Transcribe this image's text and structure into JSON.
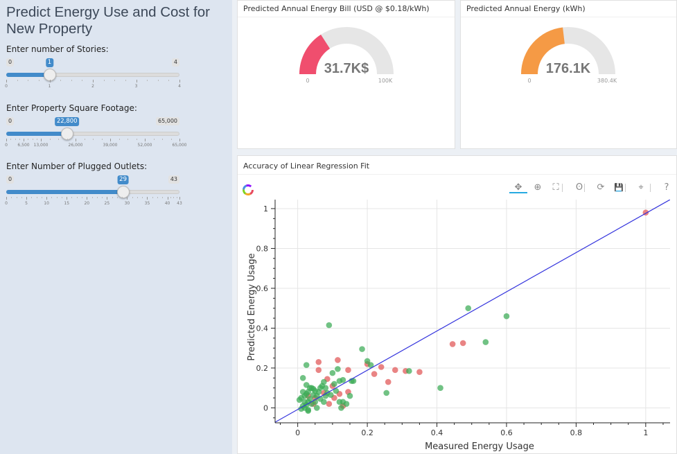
{
  "sidebar": {
    "title": "Predict Energy Use and Cost for New Property",
    "sliders": [
      {
        "label": "Enter number of Stories:",
        "min_label": "0",
        "max_label": "4",
        "value_label": "1",
        "min": 0,
        "max": 4,
        "value": 1,
        "ticks": [
          {
            "v": 0,
            "label": "0"
          },
          {
            "v": 1,
            "label": "1"
          },
          {
            "v": 2,
            "label": "2"
          },
          {
            "v": 3,
            "label": "3"
          },
          {
            "v": 4,
            "label": "4"
          }
        ]
      },
      {
        "label": "Enter Property Square Footage:",
        "min_label": "0",
        "max_label": "65,000",
        "value_label": "22,800",
        "min": 0,
        "max": 65000,
        "value": 22800,
        "ticks": [
          {
            "v": 0,
            "label": "0"
          },
          {
            "v": 6500,
            "label": "6,500"
          },
          {
            "v": 13000,
            "label": "13,000"
          },
          {
            "v": 26000,
            "label": "26,000"
          },
          {
            "v": 39000,
            "label": "39,000"
          },
          {
            "v": 52000,
            "label": "52,000"
          },
          {
            "v": 65000,
            "label": "65,000"
          }
        ]
      },
      {
        "label": "Enter Number of Plugged Outlets:",
        "min_label": "0",
        "max_label": "43",
        "value_label": "29",
        "min": 0,
        "max": 43,
        "value": 29,
        "ticks": [
          {
            "v": 0,
            "label": "0"
          },
          {
            "v": 5,
            "label": "5"
          },
          {
            "v": 10,
            "label": "10"
          },
          {
            "v": 15,
            "label": "15"
          },
          {
            "v": 20,
            "label": "20"
          },
          {
            "v": 25,
            "label": "25"
          },
          {
            "v": 30,
            "label": "30"
          },
          {
            "v": 35,
            "label": "35"
          },
          {
            "v": 40,
            "label": "40"
          },
          {
            "v": 43,
            "label": "43"
          }
        ]
      }
    ]
  },
  "gauges": [
    {
      "title": "Predicted Annual Energy Bill (USD @ $0.18/kWh)",
      "value_label": "31.7K$",
      "min_label": "0",
      "max_label": "100K",
      "value": 31.7,
      "max": 100,
      "color": "#f04e6e"
    },
    {
      "title": "Predicted Annual Energy (kWh)",
      "value_label": "176.1K",
      "min_label": "0",
      "max_label": "380.4K",
      "value": 176.1,
      "max": 380.4,
      "color": "#f59a45"
    }
  ],
  "plot_box": {
    "title": "Accuracy of Linear Regression Fit",
    "toolbar": [
      {
        "icon": "pan-icon",
        "glyph": "✥",
        "active": true
      },
      {
        "icon": "box-zoom-icon",
        "glyph": "⊕"
      },
      {
        "icon": "wheel-zoom-icon",
        "glyph": "⛶"
      },
      {
        "icon": "lasso-select-icon",
        "glyph": "ʘ"
      },
      {
        "icon": "reset-icon",
        "glyph": "⟳"
      },
      {
        "icon": "save-icon",
        "glyph": "💾"
      },
      {
        "icon": "hover-icon",
        "glyph": "⌖"
      },
      {
        "icon": "help-icon",
        "glyph": "?"
      }
    ]
  },
  "chart_data": {
    "type": "scatter",
    "title": "",
    "xlabel": "Measured Energy Usage",
    "ylabel": "Predicted Energy Usage",
    "xlim": [
      -0.065,
      1.07
    ],
    "ylim": [
      -0.075,
      1.045
    ],
    "xticks": [
      0,
      0.2,
      0.4,
      0.6,
      0.8,
      1
    ],
    "xtick_labels": [
      "0",
      "0.2",
      "0.4",
      "0.6",
      "0.8",
      "1"
    ],
    "yticks": [
      0,
      0.2,
      0.4,
      0.6,
      0.8,
      1
    ],
    "ytick_labels": [
      "0",
      "0.2",
      "0.4",
      "0.6",
      "0.8",
      "1"
    ],
    "grid": true,
    "fit_line": {
      "x": [
        -0.065,
        1.07
      ],
      "y": [
        -0.072,
        1.045
      ],
      "color": "#3333dd"
    },
    "series": [
      {
        "color": "#e05555",
        "points": [
          [
            1.0,
            0.98
          ],
          [
            0.445,
            0.32
          ],
          [
            0.475,
            0.325
          ],
          [
            0.35,
            0.18
          ],
          [
            0.31,
            0.185
          ],
          [
            0.28,
            0.19
          ],
          [
            0.26,
            0.13
          ],
          [
            0.24,
            0.205
          ],
          [
            0.22,
            0.17
          ],
          [
            0.2,
            0.22
          ],
          [
            0.115,
            0.24
          ],
          [
            0.06,
            0.23
          ],
          [
            0.06,
            0.19
          ],
          [
            0.145,
            0.19
          ],
          [
            0.145,
            0.08
          ],
          [
            0.12,
            0.07
          ],
          [
            0.105,
            0.05
          ],
          [
            0.13,
            0.01
          ],
          [
            0.09,
            0.02
          ],
          [
            0.075,
            0.075
          ],
          [
            0.05,
            0.05
          ],
          [
            0.03,
            0.06
          ],
          [
            0.045,
            0.02
          ],
          [
            0.085,
            0.145
          ],
          [
            0.1,
            0.11
          ]
        ]
      },
      {
        "color": "#3aaa55",
        "points": [
          [
            0.6,
            0.46
          ],
          [
            0.49,
            0.5
          ],
          [
            0.54,
            0.33
          ],
          [
            0.41,
            0.1
          ],
          [
            0.185,
            0.295
          ],
          [
            0.2,
            0.235
          ],
          [
            0.21,
            0.215
          ],
          [
            0.155,
            0.135
          ],
          [
            0.16,
            0.135
          ],
          [
            0.13,
            0.14
          ],
          [
            0.12,
            0.135
          ],
          [
            0.115,
            0.195
          ],
          [
            0.105,
            0.12
          ],
          [
            0.09,
            0.415
          ],
          [
            0.1,
            0.175
          ],
          [
            0.075,
            0.13
          ],
          [
            0.07,
            0.11
          ],
          [
            0.065,
            0.1
          ],
          [
            0.025,
            0.215
          ],
          [
            0.015,
            0.15
          ],
          [
            0.025,
            0.115
          ],
          [
            0.035,
            0.1
          ],
          [
            0.045,
            0.095
          ],
          [
            0.04,
            0.1
          ],
          [
            0.03,
            0.08
          ],
          [
            0.025,
            0.07
          ],
          [
            0.02,
            0.06
          ],
          [
            0.01,
            0.05
          ],
          [
            0.005,
            0.04
          ],
          [
            0.02,
            0.03
          ],
          [
            0.03,
            0.03
          ],
          [
            0.04,
            0.02
          ],
          [
            0.05,
            0.03
          ],
          [
            0.055,
            0.0
          ],
          [
            0.03,
            -0.01
          ],
          [
            0.015,
            0.01
          ],
          [
            0.035,
            0.045
          ],
          [
            0.055,
            0.06
          ],
          [
            0.06,
            0.08
          ],
          [
            0.08,
            0.06
          ],
          [
            0.085,
            0.075
          ],
          [
            0.075,
            0.03
          ],
          [
            0.095,
            0.065
          ],
          [
            0.12,
            0.03
          ],
          [
            0.13,
            0.03
          ],
          [
            0.125,
            0.0
          ],
          [
            0.14,
            0.02
          ],
          [
            0.15,
            0.06
          ],
          [
            0.255,
            0.075
          ],
          [
            0.32,
            0.185
          ],
          [
            0.01,
            -0.005
          ],
          [
            0.02,
            0.0
          ],
          [
            0.025,
            0.015
          ],
          [
            0.045,
            0.065
          ],
          [
            0.05,
            0.085
          ],
          [
            0.065,
            0.045
          ],
          [
            0.08,
            0.1
          ],
          [
            0.11,
            0.085
          ],
          [
            0.015,
            0.08
          ],
          [
            0.03,
            -0.015
          ]
        ]
      }
    ]
  }
}
